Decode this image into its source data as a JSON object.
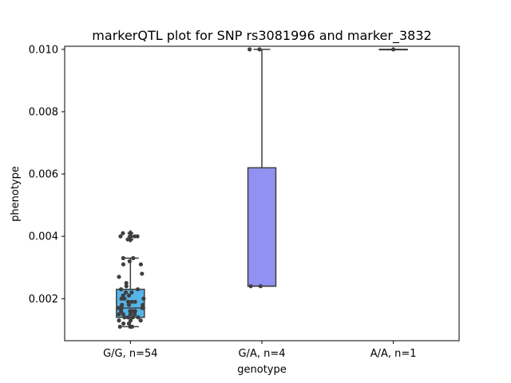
{
  "chart_data": {
    "type": "box",
    "title": "markerQTL plot for SNP rs3081996 and marker_3832",
    "xlabel": "genotype",
    "ylabel": "phenotype",
    "ylim": [
      0.00065,
      0.0101
    ],
    "yticks": [
      "0.002",
      "0.004",
      "0.006",
      "0.008",
      "0.010"
    ],
    "grid": false,
    "categories": [
      "G/G, n=54",
      "G/A, n=4",
      "A/A, n=1"
    ],
    "boxes": [
      {
        "category": "G/G, n=54",
        "color": "#56b4e9",
        "whisker_low": 0.0011,
        "q1": 0.0014,
        "median": 0.0017,
        "q3": 0.0023,
        "whisker_high": 0.0033,
        "outliers": [
          0.0039,
          0.004,
          0.0041
        ]
      },
      {
        "category": "G/A, n=4",
        "color": "#9191f2",
        "whisker_low": 0.0024,
        "q1": 0.0024,
        "median": 0.0024,
        "q3": 0.0062,
        "whisker_high": 0.01,
        "outliers": []
      },
      {
        "category": "A/A, n=1",
        "color": "#56b4e9",
        "whisker_low": 0.01,
        "q1": 0.01,
        "median": 0.01,
        "q3": 0.01,
        "whisker_high": 0.01,
        "outliers": []
      }
    ],
    "points": [
      {
        "category": "G/G, n=54",
        "values": [
          0.0011,
          0.0011,
          0.0011,
          0.0012,
          0.0012,
          0.0013,
          0.0013,
          0.0013,
          0.0014,
          0.0014,
          0.0014,
          0.0014,
          0.0015,
          0.0015,
          0.0015,
          0.0015,
          0.0016,
          0.0016,
          0.0016,
          0.0016,
          0.0017,
          0.0017,
          0.0017,
          0.0017,
          0.0017,
          0.0018,
          0.0018,
          0.0018,
          0.0019,
          0.0019,
          0.0019,
          0.002,
          0.002,
          0.002,
          0.0021,
          0.0021,
          0.0022,
          0.0022,
          0.0023,
          0.0023,
          0.0024,
          0.0025,
          0.0027,
          0.0028,
          0.0031,
          0.0031,
          0.0032,
          0.0033,
          0.0033,
          0.0039,
          0.004,
          0.004,
          0.004,
          0.0041
        ]
      },
      {
        "category": "G/A, n=4",
        "values": [
          0.0024,
          0.0024,
          0.01,
          0.01
        ]
      },
      {
        "category": "A/A, n=1",
        "values": [
          0.01
        ]
      }
    ]
  }
}
